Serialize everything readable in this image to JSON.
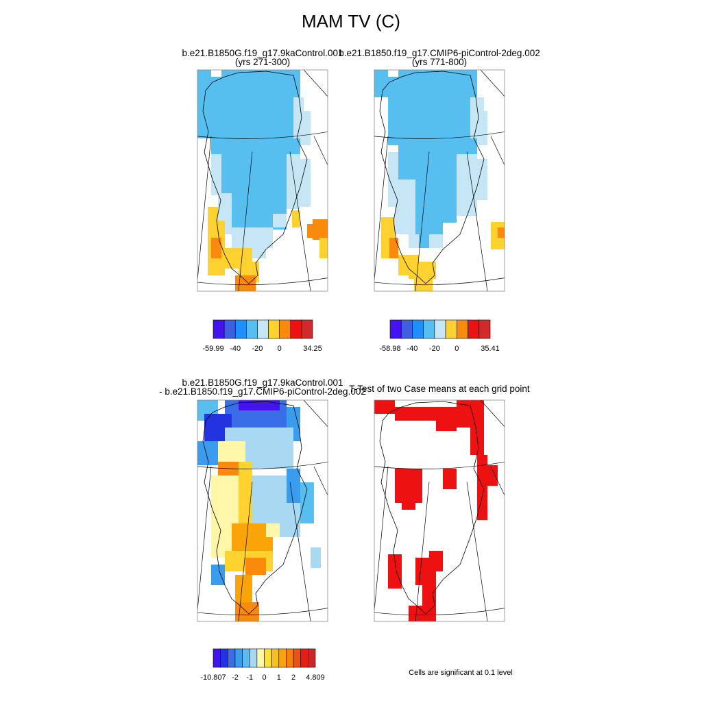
{
  "title": "MAM TV (C)",
  "panels": [
    {
      "title": "b.e21.B1850G.f19_g17.9kaControl.001",
      "subtitle": "(yrs 271-300)"
    },
    {
      "title": "b.e21.B1850.f19_g17.CMIP6-piControl-2deg.002",
      "subtitle": "(yrs 771-800)"
    },
    {
      "title": "b.e21.B1850G.f19_g17.9kaControl.001",
      "subtitle": "- b.e21.B1850.f19_g17.CMIP6-piControl-2deg.002"
    },
    {
      "title": "T-Test of two Case means at each grid point"
    }
  ],
  "colorbars": [
    {
      "labels": [
        "-59.99",
        "-40",
        "-20",
        "0",
        "34.25"
      ],
      "colors": [
        "#4314f0",
        "#3d5fe0",
        "#1e8fff",
        "#56bff0",
        "#c6e6f6",
        "#fdd22e",
        "#f98a0c",
        "#ee1111",
        "#d02a2a"
      ]
    },
    {
      "labels": [
        "-58.98",
        "-40",
        "-20",
        "0",
        "35.41"
      ],
      "colors": [
        "#4314f0",
        "#3d5fe0",
        "#1e8fff",
        "#56bff0",
        "#c6e6f6",
        "#fdd22e",
        "#f98a0c",
        "#ee1111",
        "#d02a2a"
      ]
    },
    {
      "labels": [
        "-10.807",
        "-2",
        "-1",
        "0",
        "1",
        "2",
        "4.809"
      ],
      "colors": [
        "#4314f0",
        "#2233e0",
        "#3a6ee8",
        "#3a9cec",
        "#5cbcf2",
        "#a8d8f2",
        "#fff6a8",
        "#fde040",
        "#fcc01c",
        "#fba40a",
        "#f98008",
        "#f25010",
        "#e81c12",
        "#c82828"
      ]
    }
  ],
  "footnote": "Cells are significant at 0.1 level"
}
